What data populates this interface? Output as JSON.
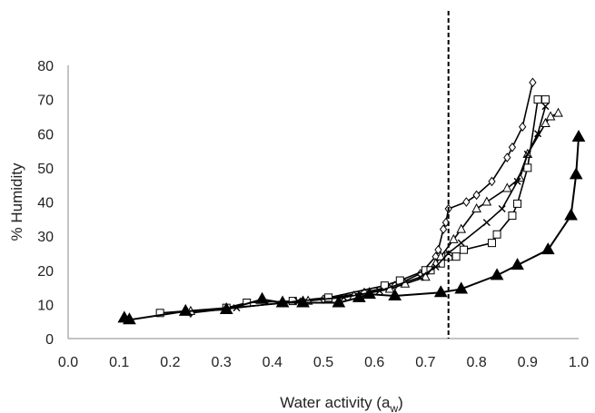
{
  "chart_data": {
    "type": "scatter",
    "xlabel": "Water activity (a",
    "xlabel_sub": "w",
    "xlabel_close": ")",
    "ylabel": "% Humidity",
    "xlim": [
      0.0,
      1.0
    ],
    "ylim": [
      0,
      80
    ],
    "x_ticks": [
      "0.0",
      "0.1",
      "0.2",
      "0.3",
      "0.4",
      "0.5",
      "0.6",
      "0.7",
      "0.8",
      "0.9",
      "1.0"
    ],
    "y_ticks": [
      "0",
      "10",
      "20",
      "30",
      "40",
      "50",
      "60",
      "70",
      "80"
    ],
    "grid": false,
    "reference_line": {
      "x": 0.745,
      "style": "dashed",
      "color": "#000000"
    },
    "series": [
      {
        "marker": "diamond-open",
        "color": "#000000",
        "x": [
          0.24,
          0.42,
          0.5,
          0.58,
          0.64,
          0.69,
          0.72,
          0.725,
          0.735,
          0.74,
          0.745,
          0.78,
          0.8,
          0.83,
          0.86,
          0.87,
          0.89,
          0.91
        ],
        "y": [
          7.5,
          10.5,
          11.5,
          13.5,
          15.5,
          19,
          24,
          26,
          32,
          34,
          38,
          40,
          42,
          46,
          53,
          56,
          62,
          75
        ]
      },
      {
        "marker": "square-open",
        "color": "#000000",
        "x": [
          0.18,
          0.31,
          0.35,
          0.44,
          0.51,
          0.62,
          0.65,
          0.7,
          0.71,
          0.73,
          0.745,
          0.76,
          0.775,
          0.83,
          0.84,
          0.87,
          0.88,
          0.9,
          0.92,
          0.935
        ],
        "y": [
          7.5,
          9,
          10.5,
          11,
          12,
          15.5,
          17,
          20,
          20,
          22,
          24,
          24,
          26,
          28,
          30.5,
          36,
          39.5,
          50,
          70,
          70
        ]
      },
      {
        "marker": "triangle-open",
        "color": "#000000",
        "x": [
          0.24,
          0.47,
          0.56,
          0.63,
          0.66,
          0.7,
          0.72,
          0.73,
          0.755,
          0.77,
          0.8,
          0.82,
          0.86,
          0.885,
          0.9,
          0.935,
          0.945,
          0.96
        ],
        "y": [
          8,
          11,
          12.5,
          14.5,
          16,
          18,
          22,
          24,
          29,
          32,
          38,
          40,
          44,
          47,
          54,
          63,
          65,
          66
        ]
      },
      {
        "marker": "x",
        "color": "#000000",
        "x": [
          0.33,
          0.45,
          0.54,
          0.61,
          0.69,
          0.72,
          0.745,
          0.77,
          0.82,
          0.85,
          0.88,
          0.9,
          0.92,
          0.935
        ],
        "y": [
          9,
          11,
          12,
          14,
          18,
          21,
          25,
          28,
          34,
          38,
          46,
          54,
          60,
          68
        ]
      },
      {
        "marker": "triangle-filled",
        "color": "#000000",
        "x": [
          0.11,
          0.12,
          0.23,
          0.31,
          0.38,
          0.42,
          0.46,
          0.53,
          0.57,
          0.59,
          0.64,
          0.73,
          0.77,
          0.84,
          0.88,
          0.94,
          0.985,
          0.995,
          1.0
        ],
        "y": [
          6,
          5.5,
          8,
          8.5,
          11.5,
          10.5,
          10.5,
          10.5,
          12,
          13,
          12.5,
          13.5,
          14.5,
          18.5,
          21.5,
          26,
          36,
          48,
          59
        ]
      }
    ]
  }
}
